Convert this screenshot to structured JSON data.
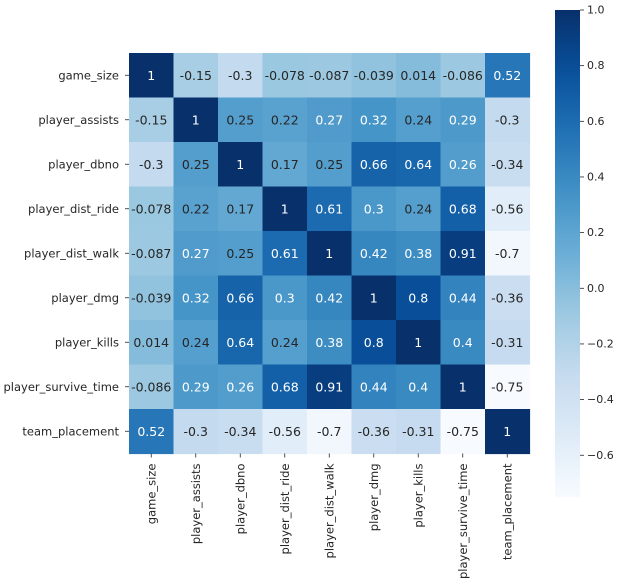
{
  "chart_data": {
    "type": "heatmap",
    "title": "",
    "xlabel": "",
    "ylabel": "",
    "variables": [
      "game_size",
      "player_assists",
      "player_dbno",
      "player_dist_ride",
      "player_dist_walk",
      "player_dmg",
      "player_kills",
      "player_survive_time",
      "team_placement"
    ],
    "matrix": [
      [
        1,
        -0.15,
        -0.3,
        -0.078,
        -0.087,
        -0.039,
        0.014,
        -0.086,
        0.52
      ],
      [
        -0.15,
        1,
        0.25,
        0.22,
        0.27,
        0.32,
        0.24,
        0.29,
        -0.3
      ],
      [
        -0.3,
        0.25,
        1,
        0.17,
        0.25,
        0.66,
        0.64,
        0.26,
        -0.34
      ],
      [
        -0.078,
        0.22,
        0.17,
        1,
        0.61,
        0.3,
        0.24,
        0.68,
        -0.56
      ],
      [
        -0.087,
        0.27,
        0.25,
        0.61,
        1,
        0.42,
        0.38,
        0.91,
        -0.7
      ],
      [
        -0.039,
        0.32,
        0.66,
        0.3,
        0.42,
        1,
        0.8,
        0.44,
        -0.36
      ],
      [
        0.014,
        0.24,
        0.64,
        0.24,
        0.38,
        0.8,
        1,
        0.4,
        -0.31
      ],
      [
        -0.086,
        0.29,
        0.26,
        0.68,
        0.91,
        0.44,
        0.4,
        1,
        -0.75
      ],
      [
        0.52,
        -0.3,
        -0.34,
        -0.56,
        -0.7,
        -0.36,
        -0.31,
        -0.75,
        1
      ]
    ],
    "colormap": "Blues",
    "color_range": [
      -0.75,
      1
    ],
    "colorbar_ticks": [
      1.0,
      0.8,
      0.6,
      0.4,
      0.2,
      0.0,
      -0.2,
      -0.4,
      -0.6
    ],
    "colorbar_tick_labels": [
      "1.0",
      "0.8",
      "0.6",
      "0.4",
      "0.2",
      "0.0",
      "−0.2",
      "−0.4",
      "−0.6"
    ],
    "annotated": true,
    "square": true
  }
}
